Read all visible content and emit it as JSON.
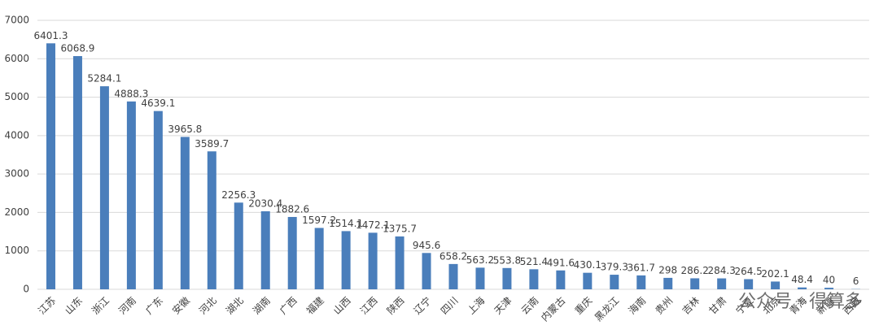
{
  "chart_data": {
    "type": "bar",
    "categories": [
      "江苏",
      "山东",
      "浙江",
      "河南",
      "广东",
      "安徽",
      "河北",
      "湖北",
      "湖南",
      "广西",
      "福建",
      "山西",
      "江西",
      "陕西",
      "辽宁",
      "四川",
      "上海",
      "天津",
      "云南",
      "内蒙古",
      "重庆",
      "黑龙江",
      "海南",
      "贵州",
      "吉林",
      "甘肃",
      "宁夏",
      "北京",
      "青海",
      "新疆",
      "西藏"
    ],
    "values": [
      6401.3,
      6068.9,
      5284.1,
      4888.3,
      4639.1,
      3965.8,
      3589.7,
      2256.3,
      2030.4,
      1882.6,
      1597.2,
      1514.1,
      1472.1,
      1375.7,
      945.6,
      658.2,
      563.2,
      553.8,
      521.4,
      491.6,
      430.1,
      379.3,
      361.7,
      298,
      286.2,
      284.3,
      264.5,
      202.1,
      48.4,
      40,
      6
    ],
    "color": "#4a7ebb",
    "ylim": [
      0,
      7000
    ],
    "yticks": [
      0,
      1000,
      2000,
      3000,
      4000,
      5000,
      6000,
      7000
    ],
    "grid": true,
    "watermark": "公众号 · 得算多"
  }
}
